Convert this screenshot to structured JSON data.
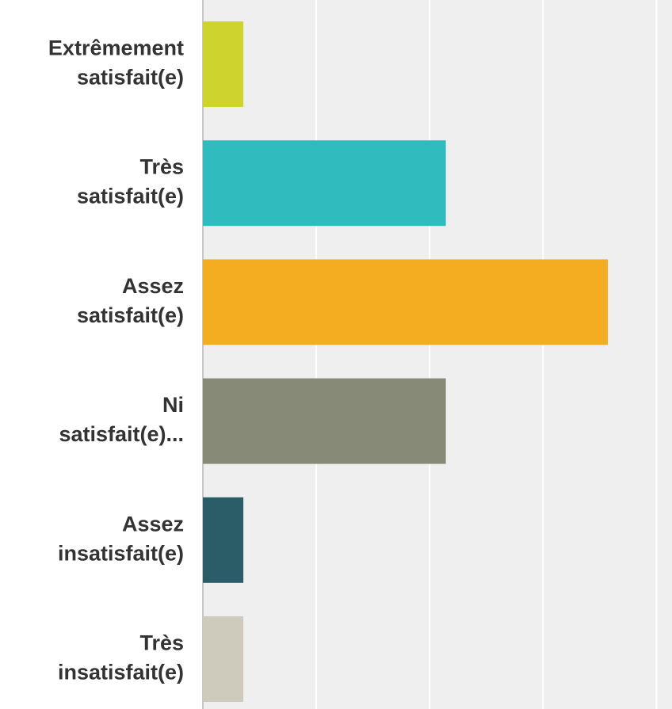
{
  "chart_data": {
    "type": "bar",
    "orientation": "horizontal",
    "categories": [
      [
        "Extrêmement",
        "satisfait(e)"
      ],
      [
        "Très",
        "satisfait(e)"
      ],
      [
        "Assez",
        "satisfait(e)"
      ],
      [
        "Ni",
        "satisfait(e)..."
      ],
      [
        "Assez",
        "insatisfait(e)"
      ],
      [
        "Très",
        "insatisfait(e)"
      ]
    ],
    "values": [
      1,
      6,
      10,
      6,
      1,
      1
    ],
    "colors": [
      "#cfd32d",
      "#30bcbe",
      "#f4ad20",
      "#888a78",
      "#2b5d68",
      "#cecbbc"
    ],
    "xlim": [
      0,
      11.3
    ],
    "gridline_step": 2.8,
    "grid": true,
    "plot_background": "#efefef",
    "gridline_color": "#ffffff",
    "axis_color": "#c8c8c8"
  }
}
